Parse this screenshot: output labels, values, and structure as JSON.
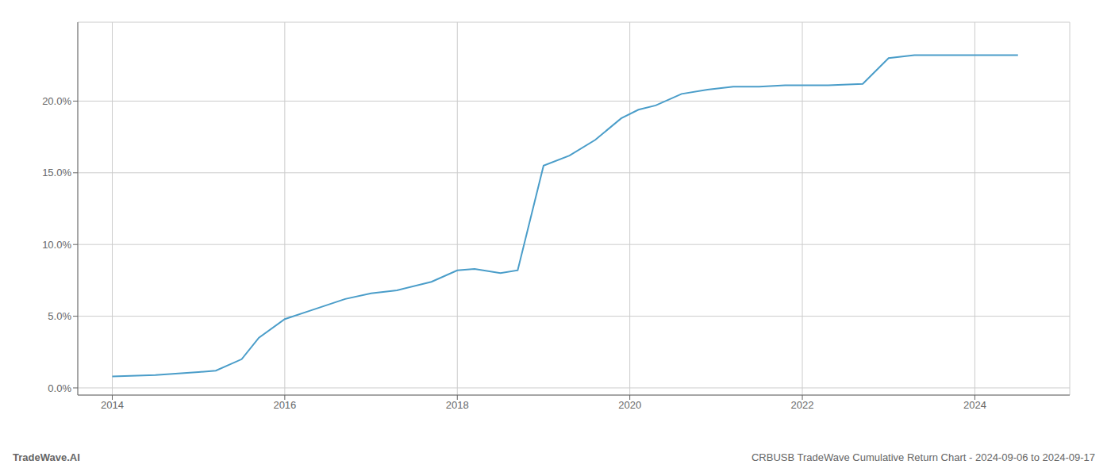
{
  "chart_data": {
    "type": "line",
    "annotations": [
      "TradeWave.AI",
      "CRBUSB TradeWave Cumulative Return Chart - 2024-09-06 to 2024-09-17"
    ],
    "x": [
      2014.0,
      2014.5,
      2015.0,
      2015.2,
      2015.5,
      2015.7,
      2016.0,
      2016.3,
      2016.7,
      2017.0,
      2017.3,
      2017.7,
      2018.0,
      2018.2,
      2018.5,
      2018.7,
      2019.0,
      2019.3,
      2019.6,
      2019.9,
      2020.1,
      2020.3,
      2020.6,
      2020.9,
      2021.2,
      2021.5,
      2021.8,
      2022.0,
      2022.3,
      2022.7,
      2023.0,
      2023.3,
      2023.7,
      2024.0,
      2024.5
    ],
    "values": [
      0.008,
      0.009,
      0.011,
      0.012,
      0.02,
      0.035,
      0.048,
      0.054,
      0.062,
      0.066,
      0.068,
      0.074,
      0.082,
      0.083,
      0.08,
      0.082,
      0.155,
      0.162,
      0.173,
      0.188,
      0.194,
      0.197,
      0.205,
      0.208,
      0.21,
      0.21,
      0.211,
      0.211,
      0.211,
      0.212,
      0.23,
      0.232,
      0.232,
      0.232,
      0.232
    ],
    "color": "#4a9dc9",
    "xlim": [
      2013.6,
      2025.1
    ],
    "ylim": [
      -0.005,
      0.255
    ],
    "xticks": [
      2014,
      2016,
      2018,
      2020,
      2022,
      2024
    ],
    "yticks": [
      {
        "value": 0.0,
        "label": "0.0%"
      },
      {
        "value": 0.05,
        "label": "5.0%"
      },
      {
        "value": 0.1,
        "label": "10.0%"
      },
      {
        "value": 0.15,
        "label": "15.0%"
      },
      {
        "value": 0.2,
        "label": "20.0%"
      }
    ],
    "grid": true
  }
}
